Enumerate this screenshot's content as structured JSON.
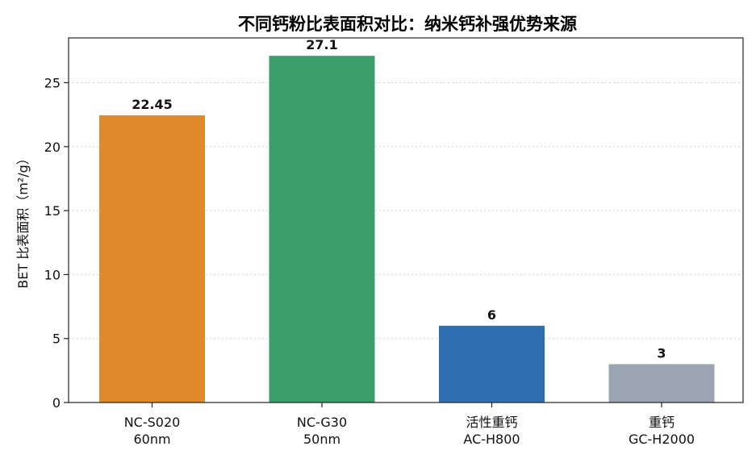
{
  "chart_data": {
    "type": "bar",
    "title": "不同钙粉比表面积对比：纳米钙补强优势来源",
    "ylabel": "BET 比表面积（m²/g）",
    "xlabel": "",
    "categories": [
      [
        "NC-S020",
        "60nm"
      ],
      [
        "NC-G30",
        "50nm"
      ],
      [
        "活性重钙",
        "AC-H800"
      ],
      [
        "重钙",
        "GC-H2000"
      ]
    ],
    "values": [
      22.45,
      27.1,
      6,
      3
    ],
    "value_labels": [
      "22.45",
      "27.1",
      "6",
      "3"
    ],
    "colors": [
      "#e08a2e",
      "#3c9e6b",
      "#2f6faf",
      "#9aa5b1"
    ],
    "ylim": [
      0,
      28.5
    ],
    "yticks": [
      0,
      5,
      10,
      15,
      20,
      25
    ],
    "grid": true,
    "legend": "none"
  }
}
